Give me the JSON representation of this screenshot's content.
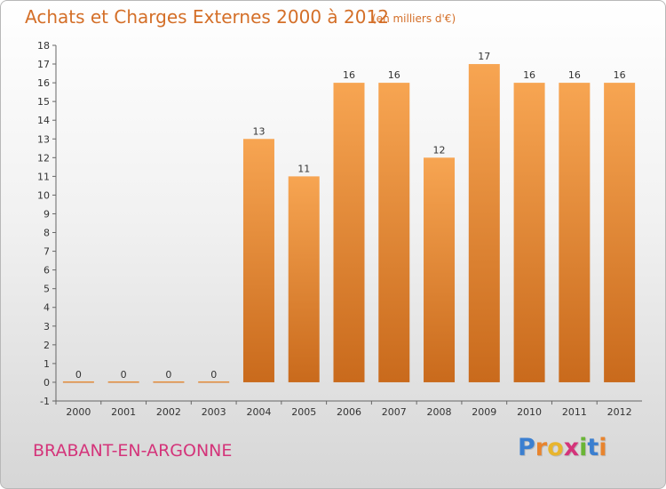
{
  "header": {
    "title": "Achats et Charges Externes 2000 à 2012",
    "unit": "(en milliers d'€)"
  },
  "footer": {
    "entity": "BRABANT-EN-ARGONNE",
    "brand_letters": [
      {
        "ch": "P",
        "color": "#3b7fd0"
      },
      {
        "ch": "r",
        "color": "#e8842e"
      },
      {
        "ch": "o",
        "color": "#e8b52e"
      },
      {
        "ch": "x",
        "color": "#d4347a"
      },
      {
        "ch": "i",
        "color": "#6ab536"
      },
      {
        "ch": "t",
        "color": "#3b7fd0"
      },
      {
        "ch": "i",
        "color": "#e8842e"
      }
    ]
  },
  "chart_data": {
    "type": "bar",
    "categories": [
      "2000",
      "2001",
      "2002",
      "2003",
      "2004",
      "2005",
      "2006",
      "2007",
      "2008",
      "2009",
      "2010",
      "2011",
      "2012"
    ],
    "values": [
      0,
      0,
      0,
      0,
      13,
      11,
      16,
      16,
      12,
      17,
      16,
      16,
      16
    ],
    "data_labels": [
      "0",
      "0",
      "0",
      "0",
      "13",
      "11",
      "16",
      "16",
      "12",
      "17",
      "16",
      "16",
      "16"
    ],
    "yticks": [
      "-1",
      "0",
      "1",
      "2",
      "3",
      "4",
      "5",
      "6",
      "7",
      "8",
      "9",
      "10",
      "11",
      "12",
      "13",
      "14",
      "15",
      "16",
      "17",
      "18"
    ],
    "ylim": [
      -1,
      18
    ],
    "grid": false,
    "bar_color": "#f0953c",
    "bar_color_dark": "#c96a1c"
  }
}
